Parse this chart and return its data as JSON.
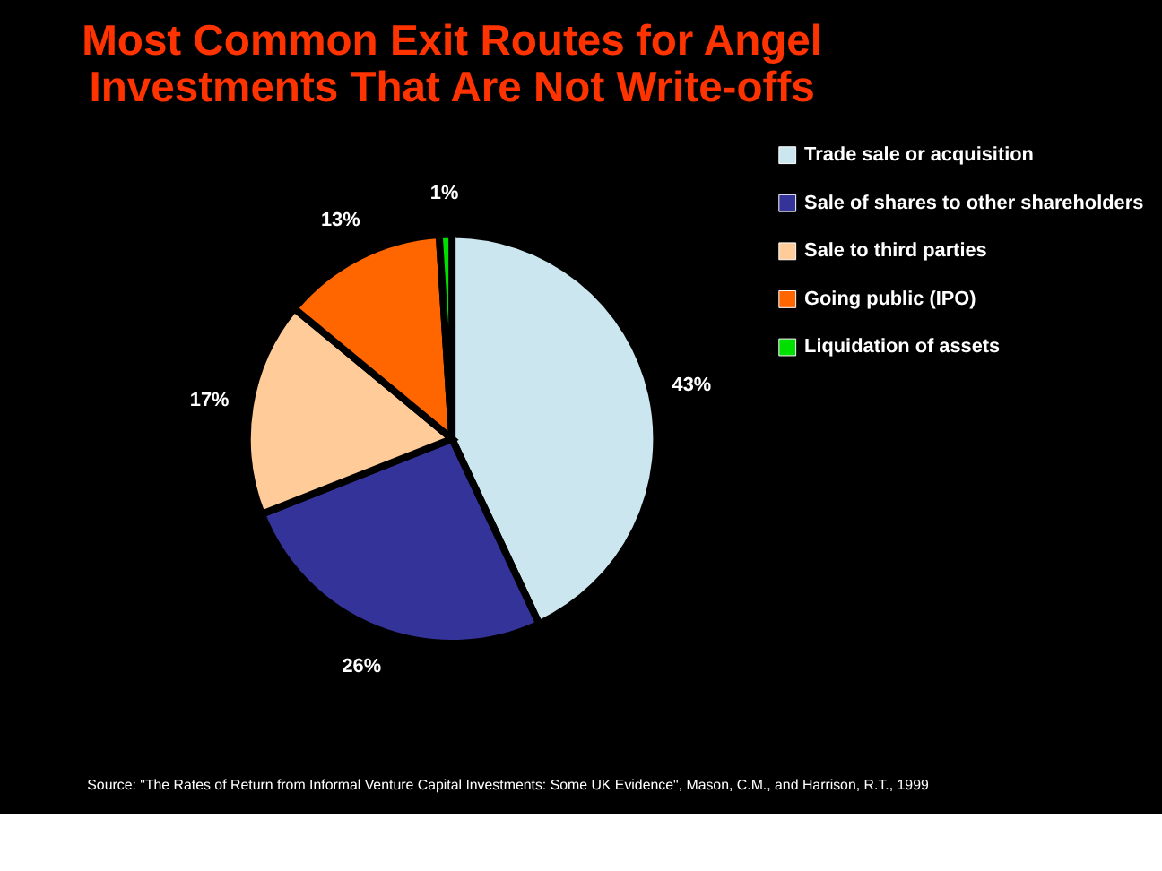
{
  "chart_data": {
    "type": "pie",
    "title": "Most Common Exit Routes for Angel Investments That Are Not Write-offs",
    "categories": [
      "Trade sale or acquisition",
      "Sale of shares to other shareholders",
      "Sale to third parties",
      "Going public (IPO)",
      "Liquidation of assets"
    ],
    "values": [
      43,
      26,
      17,
      13,
      1
    ],
    "value_labels": [
      "43%",
      "26%",
      "17%",
      "13%",
      "1%"
    ],
    "colors": [
      "#cce6f0",
      "#333399",
      "#ffcc99",
      "#ff6600",
      "#00e000"
    ],
    "legend": "right",
    "annotations": [
      "Source: \"The Rates of Return from Informal Venture Capital Investments: Some UK Evidence\", Mason, C.M., and Harrison, R.T., 1999"
    ]
  }
}
